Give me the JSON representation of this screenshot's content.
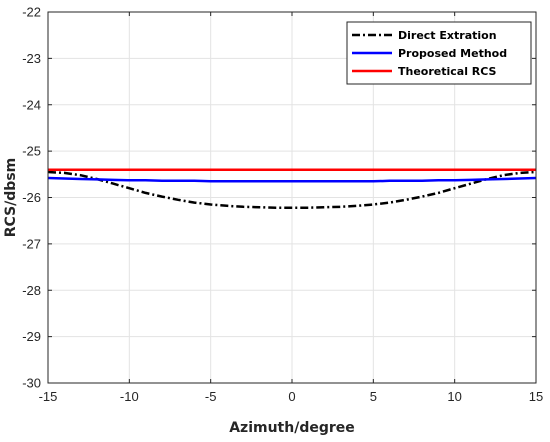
{
  "chart_data": {
    "type": "line",
    "title": "",
    "xlabel": "Azimuth/degree",
    "ylabel": "RCS/dbsm",
    "xlim": [
      -15,
      15
    ],
    "ylim": [
      -30,
      -22
    ],
    "xticks": [
      -15,
      -10,
      -5,
      0,
      5,
      10,
      15
    ],
    "yticks": [
      -22,
      -23,
      -24,
      -25,
      -26,
      -27,
      -28,
      -29,
      -30
    ],
    "grid": true,
    "legend_position": "top-right",
    "x": [
      -15,
      -14,
      -13,
      -12,
      -11,
      -10,
      -9,
      -8,
      -7,
      -6,
      -5,
      -4,
      -3,
      -2,
      -1,
      0,
      1,
      2,
      3,
      4,
      5,
      6,
      7,
      8,
      9,
      10,
      11,
      12,
      13,
      14,
      15
    ],
    "series": [
      {
        "name": "Direct Extration",
        "color": "#000000",
        "style": "dash-dot",
        "values": [
          -25.45,
          -25.47,
          -25.52,
          -25.6,
          -25.7,
          -25.8,
          -25.9,
          -25.98,
          -26.05,
          -26.11,
          -26.15,
          -26.18,
          -26.2,
          -26.21,
          -26.22,
          -26.22,
          -26.22,
          -26.21,
          -26.2,
          -26.18,
          -26.15,
          -26.11,
          -26.05,
          -25.98,
          -25.9,
          -25.8,
          -25.7,
          -25.6,
          -25.52,
          -25.47,
          -25.45
        ]
      },
      {
        "name": "Proposed Method",
        "color": "#0000ff",
        "style": "solid",
        "values": [
          -25.58,
          -25.59,
          -25.6,
          -25.61,
          -25.62,
          -25.63,
          -25.63,
          -25.64,
          -25.64,
          -25.64,
          -25.65,
          -25.65,
          -25.65,
          -25.65,
          -25.65,
          -25.65,
          -25.65,
          -25.65,
          -25.65,
          -25.65,
          -25.65,
          -25.64,
          -25.64,
          -25.64,
          -25.63,
          -25.63,
          -25.62,
          -25.61,
          -25.6,
          -25.59,
          -25.58
        ]
      },
      {
        "name": "Theoretical RCS",
        "color": "#ff0000",
        "style": "solid",
        "values": [
          -25.4,
          -25.4,
          -25.4,
          -25.4,
          -25.4,
          -25.4,
          -25.4,
          -25.4,
          -25.4,
          -25.4,
          -25.4,
          -25.4,
          -25.4,
          -25.4,
          -25.4,
          -25.4,
          -25.4,
          -25.4,
          -25.4,
          -25.4,
          -25.4,
          -25.4,
          -25.4,
          -25.4,
          -25.4,
          -25.4,
          -25.4,
          -25.4,
          -25.4,
          -25.4,
          -25.4
        ]
      }
    ]
  }
}
